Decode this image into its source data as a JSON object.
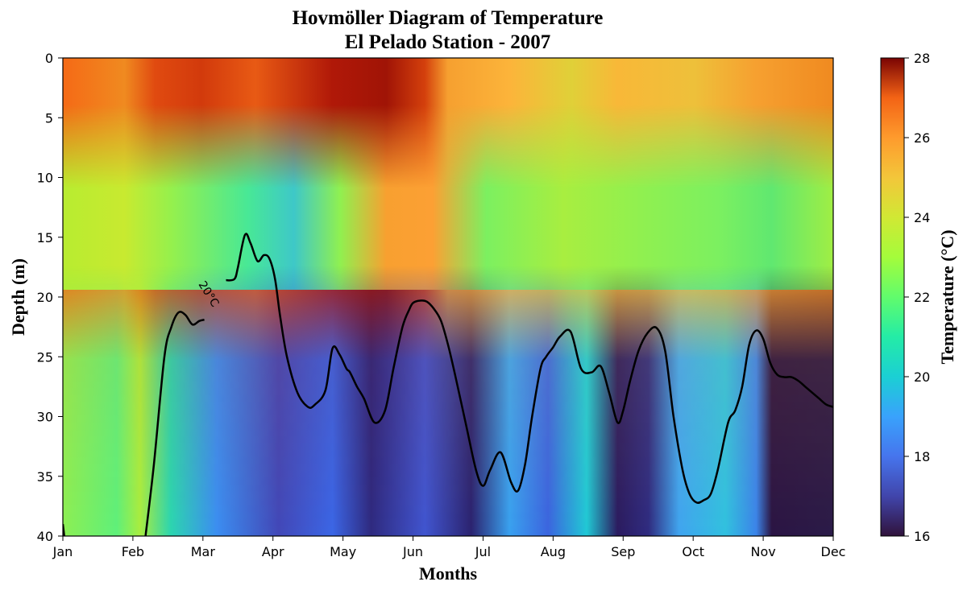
{
  "chart_data": {
    "type": "heatmap",
    "title": "Hovmöller Diagram of Temperature",
    "subtitle": "El Pelado Station - 2007",
    "xlabel": "Months",
    "ylabel": "Depth (m)",
    "colorbar_label": "Temperature (°C)",
    "colormap": "turbo",
    "x_ticks": [
      "Jan",
      "Feb",
      "Mar",
      "Apr",
      "May",
      "Jun",
      "Jul",
      "Aug",
      "Sep",
      "Oct",
      "Nov",
      "Dec"
    ],
    "y_ticks": [
      0,
      5,
      10,
      15,
      20,
      25,
      30,
      35,
      40
    ],
    "ylim": [
      40,
      0
    ],
    "y_inverted": true,
    "clim": [
      16,
      28
    ],
    "colorbar_ticks": [
      16,
      18,
      20,
      22,
      24,
      26,
      28
    ],
    "contour": {
      "level": 20,
      "label": "20°C",
      "line_color": "#000000",
      "segments": [
        {
          "x": [
            0.0,
            0.02
          ],
          "depth": [
            39.0,
            40.0
          ]
        },
        {
          "x": [
            1.18,
            1.3,
            1.45,
            1.55,
            1.65,
            1.75,
            1.85,
            1.95,
            2.02
          ],
          "depth": [
            40.0,
            34.0,
            25.0,
            22.5,
            21.3,
            21.5,
            22.3,
            22.0,
            21.9
          ]
        },
        {
          "x": [
            2.33,
            2.45,
            2.5,
            2.6,
            2.68,
            2.78,
            2.87,
            2.95,
            3.03,
            3.1,
            3.2,
            3.35,
            3.5,
            3.6,
            3.75,
            3.85,
            3.95,
            4.05,
            4.1,
            4.2,
            4.3,
            4.45,
            4.6,
            4.72,
            4.85,
            4.95,
            5.0,
            5.1,
            5.2,
            5.3,
            5.4,
            5.5,
            5.6,
            5.75,
            5.9,
            6.0,
            6.1,
            6.25,
            6.4,
            6.5,
            6.6,
            6.7,
            6.82,
            6.9,
            7.0,
            7.1,
            7.25,
            7.4,
            7.55,
            7.68,
            7.8,
            7.92,
            8.0,
            8.1,
            8.22,
            8.35,
            8.48,
            8.6,
            8.72,
            8.85,
            8.95,
            9.05,
            9.15,
            9.25,
            9.35,
            9.5,
            9.6,
            9.7,
            9.8,
            9.9,
            10.0,
            10.1,
            10.2,
            10.3,
            10.4,
            10.5,
            10.6,
            10.7,
            10.8,
            10.9,
            11.0
          ],
          "depth": [
            18.6,
            18.5,
            17.5,
            14.8,
            15.5,
            17.0,
            16.5,
            16.8,
            18.5,
            21.5,
            25.0,
            28.0,
            29.2,
            29.0,
            27.8,
            24.3,
            24.8,
            26.0,
            26.3,
            27.5,
            28.5,
            30.5,
            29.5,
            26.0,
            22.5,
            21.0,
            20.5,
            20.3,
            20.4,
            21.0,
            22.0,
            24.0,
            26.5,
            30.5,
            34.5,
            35.8,
            34.5,
            33.0,
            35.5,
            36.2,
            34.0,
            30.0,
            26.0,
            25.0,
            24.2,
            23.3,
            22.9,
            26.0,
            26.3,
            25.8,
            28.0,
            30.5,
            29.5,
            27.0,
            24.5,
            23.0,
            22.6,
            24.5,
            30.0,
            34.5,
            36.5,
            37.2,
            37.0,
            36.5,
            34.5,
            30.5,
            29.5,
            27.5,
            24.0,
            22.8,
            23.5,
            25.5,
            26.5,
            26.7,
            26.7,
            27.0,
            27.5,
            28.0,
            28.5,
            29.0,
            29.2
          ]
        }
      ]
    }
  }
}
